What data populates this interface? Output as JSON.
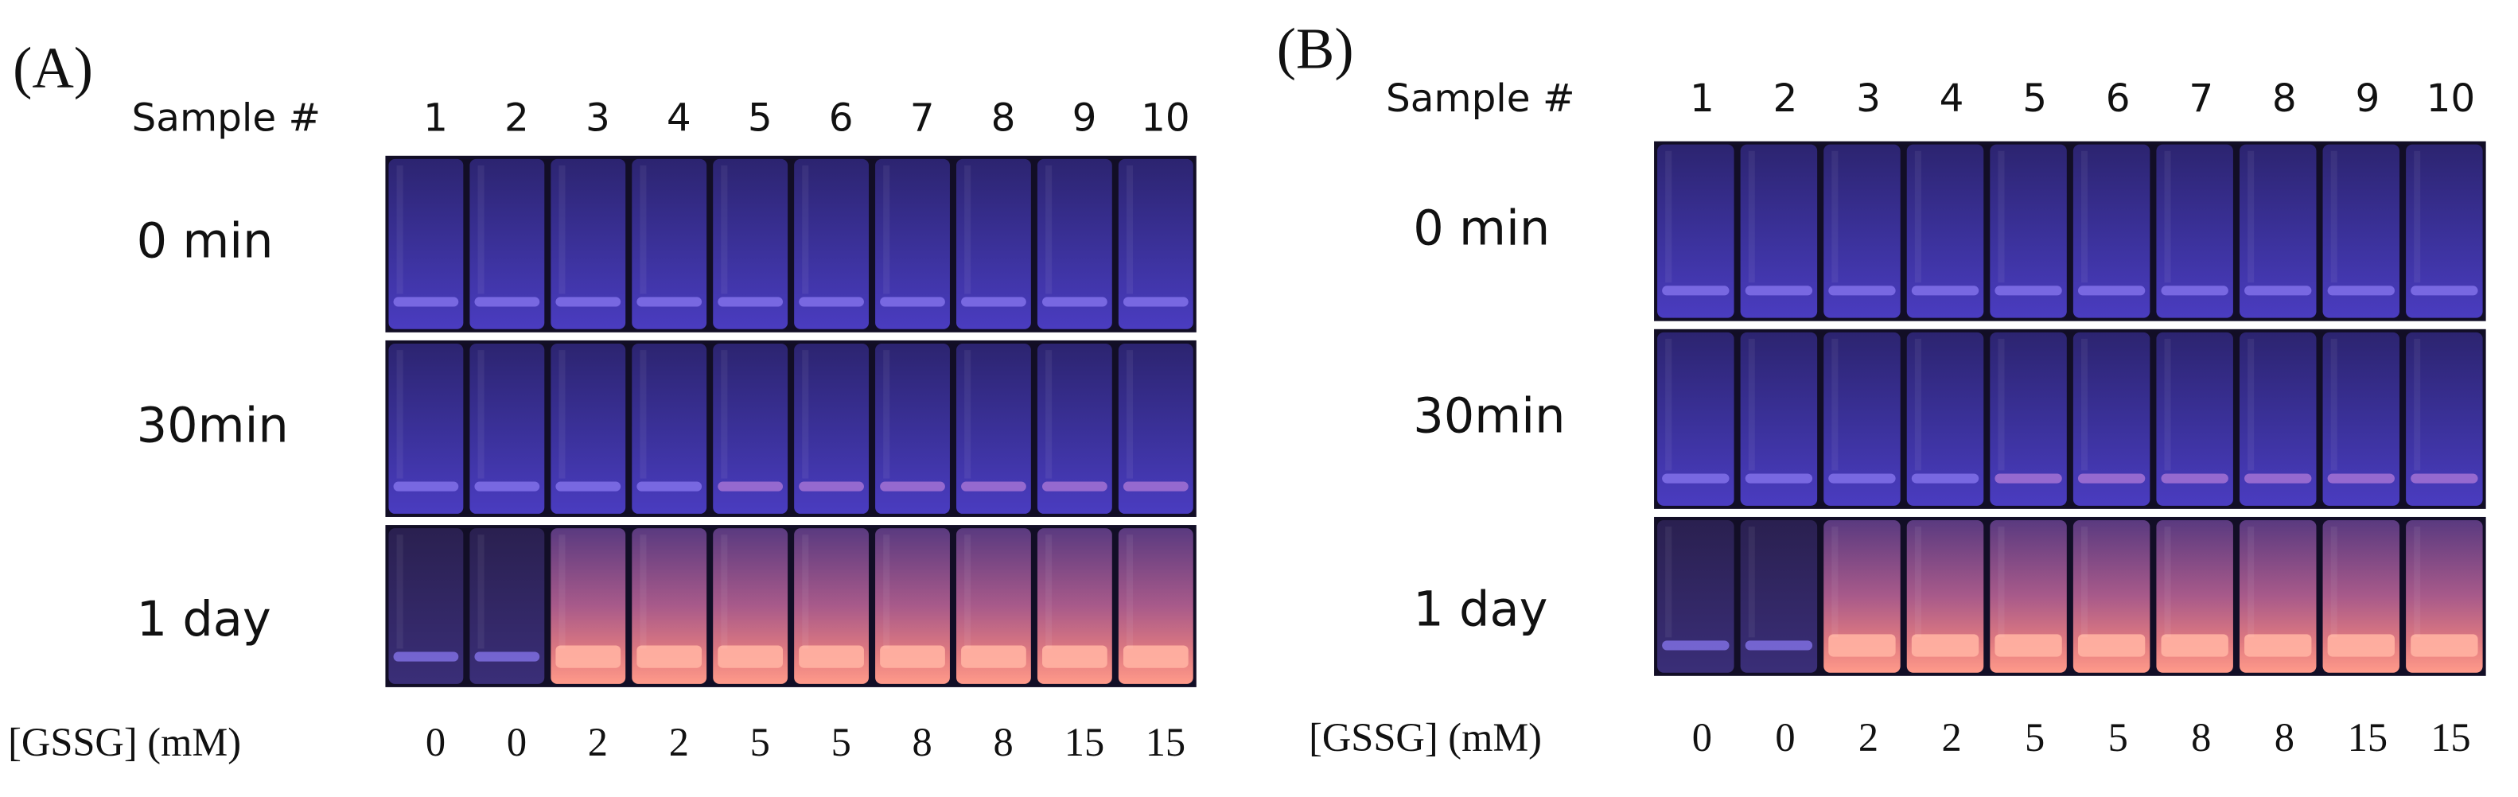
{
  "panels": [
    {
      "label": "(A)",
      "sample_header": "Sample #",
      "samples": [
        1,
        2,
        3,
        4,
        5,
        6,
        7,
        8,
        9,
        10
      ],
      "rows": [
        "0 min",
        "30min",
        "1 day"
      ],
      "gssg_header": "[GSSG] (mM)",
      "gssg": [
        0,
        0,
        2,
        2,
        5,
        5,
        8,
        8,
        15,
        15
      ]
    },
    {
      "label": "(B)",
      "sample_header": "Sample #",
      "samples": [
        1,
        2,
        3,
        4,
        5,
        6,
        7,
        8,
        9,
        10
      ],
      "rows": [
        "0 min",
        "30min",
        "1 day"
      ],
      "gssg_header": "[GSSG] (mM)",
      "gssg": [
        0,
        0,
        2,
        2,
        5,
        5,
        8,
        8,
        15,
        15
      ]
    }
  ]
}
